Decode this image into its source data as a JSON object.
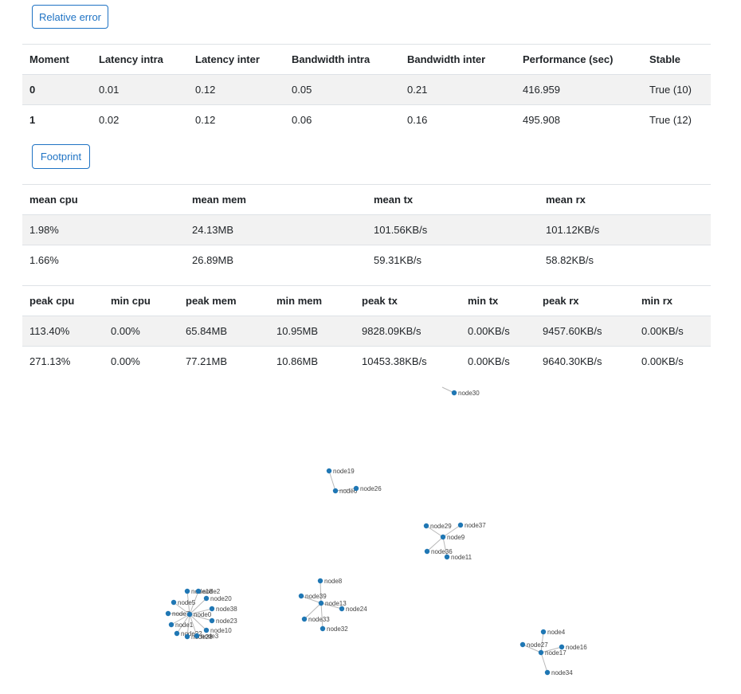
{
  "buttons": {
    "relative_error": "Relative error",
    "footprint": "Footprint"
  },
  "error_table": {
    "headers": [
      "Moment",
      "Latency intra",
      "Latency inter",
      "Bandwidth intra",
      "Bandwidth inter",
      "Performance (sec)",
      "Stable"
    ],
    "rows": [
      [
        "0",
        "0.01",
        "0.12",
        "0.05",
        "0.21",
        "416.959",
        "True (10)"
      ],
      [
        "1",
        "0.02",
        "0.12",
        "0.06",
        "0.16",
        "495.908",
        "True (12)"
      ]
    ]
  },
  "mean_table": {
    "headers": [
      "mean cpu",
      "mean mem",
      "mean tx",
      "mean rx"
    ],
    "rows": [
      [
        "1.98%",
        "24.13MB",
        "101.56KB/s",
        "101.12KB/s"
      ],
      [
        "1.66%",
        "26.89MB",
        "59.31KB/s",
        "58.82KB/s"
      ]
    ]
  },
  "peak_table": {
    "headers": [
      "peak cpu",
      "min cpu",
      "peak mem",
      "min mem",
      "peak tx",
      "min tx",
      "peak rx",
      "min rx"
    ],
    "rows": [
      [
        "113.40%",
        "0.00%",
        "65.84MB",
        "10.95MB",
        "9828.09KB/s",
        "0.00KB/s",
        "9457.60KB/s",
        "0.00KB/s"
      ],
      [
        "271.13%",
        "0.00%",
        "77.21MB",
        "10.86MB",
        "10453.38KB/s",
        "0.00KB/s",
        "9640.30KB/s",
        "0.00KB/s"
      ]
    ]
  },
  "graph": {
    "node_color": "#1f77b4",
    "edge_color": "#b8b8b8",
    "nodes": [
      "node30",
      "node19",
      "node6",
      "node26",
      "node29",
      "node37",
      "node9",
      "node36",
      "node11",
      "node8",
      "node39",
      "node13",
      "node24",
      "node33",
      "node32",
      "node18",
      "node2",
      "node5",
      "node20",
      "node7",
      "node0",
      "node38",
      "node1",
      "node23",
      "node10",
      "node22",
      "node28",
      "node3",
      "node4",
      "node27",
      "node16",
      "node17",
      "node34"
    ],
    "edges": [
      [
        "node19",
        "node6"
      ],
      [
        "node6",
        "node26"
      ],
      [
        "node29",
        "node9"
      ],
      [
        "node37",
        "node9"
      ],
      [
        "node36",
        "node9"
      ],
      [
        "node11",
        "node9"
      ],
      [
        "node8",
        "node13"
      ],
      [
        "node39",
        "node13"
      ],
      [
        "node24",
        "node13"
      ],
      [
        "node33",
        "node13"
      ],
      [
        "node32",
        "node13"
      ],
      [
        "node18",
        "node0"
      ],
      [
        "node2",
        "node0"
      ],
      [
        "node5",
        "node0"
      ],
      [
        "node20",
        "node0"
      ],
      [
        "node7",
        "node0"
      ],
      [
        "node38",
        "node0"
      ],
      [
        "node1",
        "node0"
      ],
      [
        "node23",
        "node0"
      ],
      [
        "node10",
        "node0"
      ],
      [
        "node22",
        "node0"
      ],
      [
        "node28",
        "node0"
      ],
      [
        "node3",
        "node0"
      ],
      [
        "node4",
        "node17"
      ],
      [
        "node27",
        "node17"
      ],
      [
        "node16",
        "node17"
      ],
      [
        "node34",
        "node17"
      ]
    ]
  }
}
